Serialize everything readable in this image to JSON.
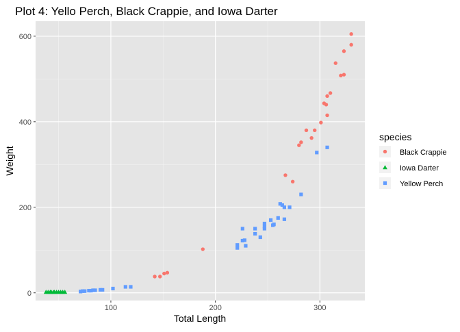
{
  "chart_data": {
    "type": "scatter",
    "title": "Plot 4: Yello Perch, Black Crappie, and Iowa Darter",
    "xlabel": "Total Length",
    "ylabel": "Weight",
    "xlim": [
      28,
      343
    ],
    "ylim": [
      -18,
      635
    ],
    "x_ticks": [
      100,
      200,
      300
    ],
    "y_ticks": [
      0,
      200,
      400,
      600
    ],
    "grid": true,
    "background": "#e5e5e5",
    "legend": {
      "title": "species",
      "position": "right"
    },
    "series": [
      {
        "name": "Black Crappie",
        "color": "#f8766d",
        "marker": "circle",
        "points": [
          [
            142,
            38
          ],
          [
            147,
            38
          ],
          [
            151,
            45
          ],
          [
            154,
            47
          ],
          [
            188,
            102
          ],
          [
            267,
            275
          ],
          [
            274,
            260
          ],
          [
            280,
            345
          ],
          [
            282,
            352
          ],
          [
            287,
            380
          ],
          [
            292,
            362
          ],
          [
            295,
            380
          ],
          [
            301,
            398
          ],
          [
            304,
            443
          ],
          [
            306,
            440
          ],
          [
            307,
            415
          ],
          [
            307,
            460
          ],
          [
            310,
            467
          ],
          [
            315,
            537
          ],
          [
            320,
            508
          ],
          [
            323,
            565
          ],
          [
            323,
            510
          ],
          [
            330,
            605
          ],
          [
            330,
            580
          ]
        ]
      },
      {
        "name": "Iowa Darter",
        "color": "#00ba38",
        "marker": "triangle",
        "points": [
          [
            38,
            2
          ],
          [
            40,
            2
          ],
          [
            42,
            2
          ],
          [
            43,
            2
          ],
          [
            45,
            2
          ],
          [
            46,
            2
          ],
          [
            48,
            2
          ],
          [
            50,
            2
          ],
          [
            52,
            2
          ],
          [
            54,
            2
          ],
          [
            56,
            2
          ]
        ]
      },
      {
        "name": "Yellow Perch",
        "color": "#619cff",
        "marker": "square",
        "points": [
          [
            71,
            3
          ],
          [
            73,
            4
          ],
          [
            75,
            4
          ],
          [
            79,
            5
          ],
          [
            81,
            5
          ],
          [
            83,
            6
          ],
          [
            85,
            6
          ],
          [
            90,
            7
          ],
          [
            92,
            7
          ],
          [
            102,
            10
          ],
          [
            114,
            14
          ],
          [
            119,
            14
          ],
          [
            221,
            105
          ],
          [
            221,
            112
          ],
          [
            226,
            122
          ],
          [
            226,
            150
          ],
          [
            228,
            123
          ],
          [
            229,
            110
          ],
          [
            238,
            138
          ],
          [
            238,
            150
          ],
          [
            243,
            130
          ],
          [
            247,
            150
          ],
          [
            247,
            155
          ],
          [
            247,
            162
          ],
          [
            253,
            170
          ],
          [
            255,
            158
          ],
          [
            256,
            160
          ],
          [
            260,
            175
          ],
          [
            262,
            208
          ],
          [
            264,
            205
          ],
          [
            266,
            200
          ],
          [
            266,
            172
          ],
          [
            271,
            200
          ],
          [
            282,
            230
          ],
          [
            297,
            328
          ],
          [
            307,
            340
          ]
        ]
      }
    ]
  }
}
